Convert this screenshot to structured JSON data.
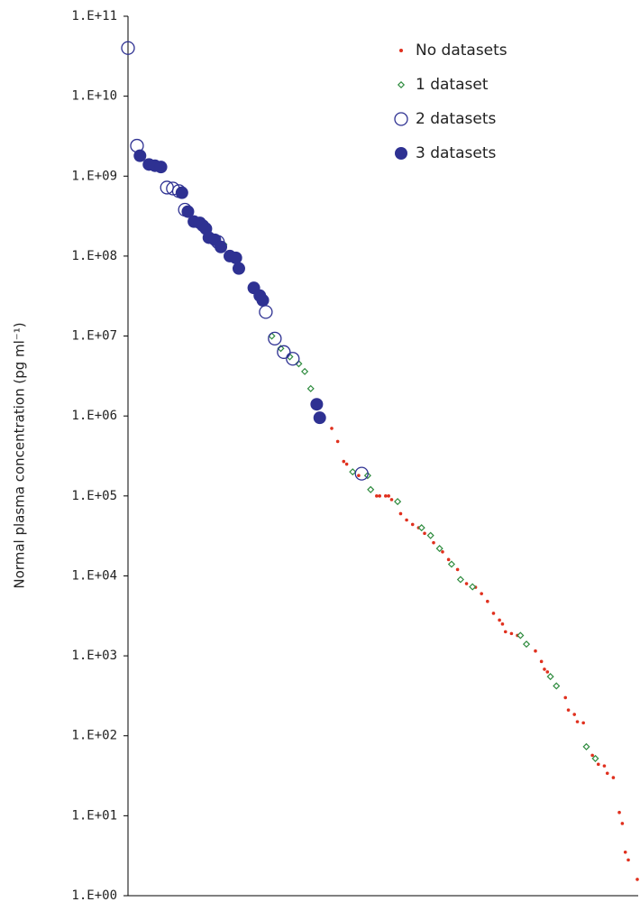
{
  "chart_data": {
    "type": "scatter",
    "y_label": "Normal plasma concentration (pg ml⁻¹)",
    "log_y": true,
    "xlim": [
      0,
      170
    ],
    "ylim": [
      1,
      100000000000
    ],
    "yticks": [
      {
        "value": 1,
        "label": "1.E+00"
      },
      {
        "value": 10,
        "label": "1.E+01"
      },
      {
        "value": 100,
        "label": "1.E+02"
      },
      {
        "value": 1000,
        "label": "1.E+03"
      },
      {
        "value": 10000,
        "label": "1.E+04"
      },
      {
        "value": 100000,
        "label": "1.E+05"
      },
      {
        "value": 1000000,
        "label": "1.E+06"
      },
      {
        "value": 10000000,
        "label": "1.E+07"
      },
      {
        "value": 100000000,
        "label": "1.E+08"
      },
      {
        "value": 1000000000,
        "label": "1.E+09"
      },
      {
        "value": 10000000000,
        "label": "1.E+10"
      },
      {
        "value": 100000000000,
        "label": "1.E+11"
      }
    ],
    "legend_position": "top-right",
    "series": [
      {
        "name": "No datasets",
        "color": "#e0301e",
        "marker": "dot",
        "x": [
          68,
          70,
          72,
          73,
          77,
          83,
          84,
          86,
          87,
          88,
          91,
          93,
          95,
          97,
          99,
          102,
          105,
          107,
          110,
          113,
          116,
          118,
          120,
          122,
          124,
          125,
          126,
          128,
          130,
          136,
          138,
          139,
          140,
          146,
          147,
          149,
          150,
          152,
          155,
          157,
          159,
          160,
          162,
          164,
          165,
          166,
          167,
          170
        ],
        "values": [
          700000,
          480000,
          270000,
          250000,
          180000,
          100000,
          100000,
          100000,
          100000,
          90000,
          60000,
          50000,
          44000,
          40000,
          34000,
          26000,
          20000,
          16000,
          12000,
          8000,
          7200,
          6000,
          4800,
          3400,
          2800,
          2500,
          2000,
          1900,
          1800,
          1150,
          850,
          680,
          630,
          300,
          210,
          185,
          150,
          145,
          57,
          44,
          42,
          34,
          30,
          11,
          8,
          3.5,
          2.8,
          1.6
        ]
      },
      {
        "name": "1 dataset",
        "color": "#2e8b3e",
        "marker": "diamond",
        "x": [
          32,
          48,
          51,
          54,
          57,
          59,
          61,
          75,
          80,
          81,
          90,
          98,
          101,
          104,
          108,
          111,
          115,
          131,
          133,
          141,
          143,
          153,
          156
        ],
        "values": [
          140000000,
          10000000,
          7000000,
          5500000,
          4500000,
          3600000,
          2200000,
          200000,
          180000,
          120000,
          85000,
          40000,
          32000,
          22000,
          14000,
          9000,
          7300,
          1800,
          1400,
          550,
          420,
          73,
          52
        ]
      },
      {
        "name": "2 datasets",
        "color": "#2e3192",
        "marker": "open-circle",
        "x": [
          0,
          3,
          13,
          15,
          17,
          19,
          30,
          46,
          49,
          52,
          55,
          78
        ],
        "values": [
          40000000000,
          2400000000,
          720000000,
          700000000,
          650000000,
          380000000,
          150000000,
          20000000,
          9300000,
          6300000,
          5200000,
          190000
        ]
      },
      {
        "name": "3 datasets",
        "color": "#2e3192",
        "marker": "filled-circle",
        "x": [
          4,
          7,
          9,
          11,
          18,
          20,
          22,
          24,
          25,
          26,
          27,
          29,
          31,
          34,
          36,
          37,
          42,
          44,
          45,
          63,
          64
        ],
        "values": [
          1800000000,
          1400000000,
          1350000000,
          1300000000,
          620000000,
          360000000,
          270000000,
          260000000,
          240000000,
          220000000,
          170000000,
          160000000,
          130000000,
          100000000,
          95000000,
          70000000,
          40000000,
          32000000,
          28000000,
          1400000,
          950000
        ]
      }
    ]
  }
}
